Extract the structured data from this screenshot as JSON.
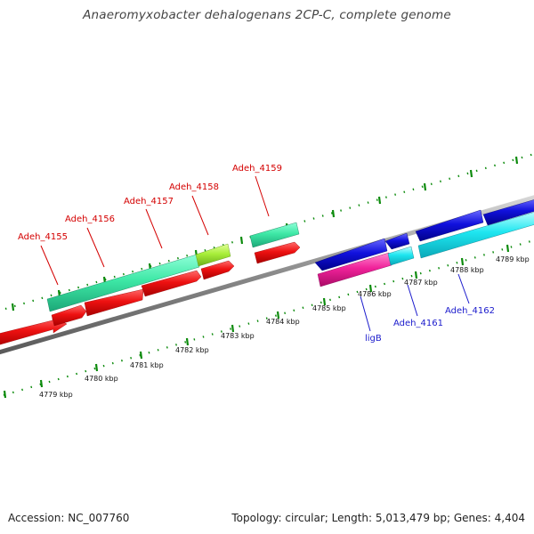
{
  "title": "Anaeromyxobacter dehalogenans 2CP-C, complete genome",
  "footer": {
    "accession": "Accession: NC_007760",
    "summary": "Topology: circular; Length: 5,013,479 bp; Genes: 4,404"
  },
  "colors": {
    "forward_label": "#d40000",
    "reverse_label": "#1a1acc",
    "backbone": "#7a7a7a",
    "ticks": "#0a8a0a"
  },
  "ticks": [
    {
      "label": "4779 kbp"
    },
    {
      "label": "4780 kbp"
    },
    {
      "label": "4781 kbp"
    },
    {
      "label": "4782 kbp"
    },
    {
      "label": "4783 kbp"
    },
    {
      "label": "4784 kbp"
    },
    {
      "label": "4785 kbp"
    },
    {
      "label": "4786 kbp"
    },
    {
      "label": "4787 kbp"
    },
    {
      "label": "4788 kbp"
    },
    {
      "label": "4789 kbp"
    }
  ],
  "gene_labels": {
    "forward": [
      "Adeh_4155",
      "Adeh_4156",
      "Adeh_4157",
      "Adeh_4158",
      "Adeh_4159"
    ],
    "reverse": [
      "ligB",
      "Adeh_4161",
      "Adeh_4162"
    ]
  }
}
